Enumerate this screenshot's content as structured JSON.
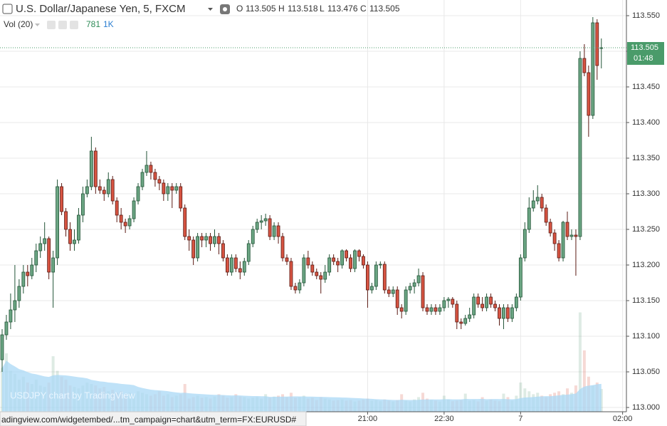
{
  "chart_data": {
    "type": "candlestick",
    "title": "U.S. Dollar/Japanese Yen, 5, FXCM",
    "ohlc_labels": [
      "O",
      "H",
      "L",
      "C"
    ],
    "volume_label": "Vol (20)",
    "volume_ma_period": 20,
    "volume_ma_label": "1K",
    "watermark": "USDJPY chart by TradingView",
    "countdown": "01:48",
    "open": [
      113.067,
      113.102,
      113.12,
      113.137,
      113.15,
      113.17,
      113.19,
      113.185,
      113.2,
      113.22,
      113.23,
      113.237,
      113.19,
      113.21,
      113.31,
      113.275,
      113.25,
      113.23,
      113.235,
      113.27,
      113.3,
      113.31,
      113.36,
      113.31,
      113.305,
      113.3,
      113.32,
      113.29,
      113.27,
      113.26,
      113.255,
      113.265,
      113.29,
      113.31,
      113.33,
      113.34,
      113.33,
      113.32,
      113.315,
      113.3,
      113.31,
      113.305,
      113.31,
      113.28,
      113.24,
      113.235,
      113.21,
      113.24,
      113.235,
      113.24,
      113.23,
      113.24,
      113.23,
      113.21,
      113.19,
      113.21,
      113.195,
      113.19,
      113.205,
      113.23,
      113.25,
      113.26,
      113.262,
      113.265,
      113.24,
      113.255,
      113.24,
      113.21,
      113.205,
      113.17,
      113.165,
      113.175,
      113.21,
      113.2,
      113.19,
      113.185,
      113.18,
      113.19,
      113.21,
      113.205,
      113.2,
      113.22,
      113.21,
      113.195,
      113.22,
      113.212,
      113.2,
      113.165,
      113.17,
      113.2,
      113.201,
      113.165,
      113.16,
      113.165,
      113.14,
      113.135,
      113.165,
      113.17,
      113.175,
      113.185,
      113.14,
      113.135,
      113.14,
      113.135,
      113.14,
      113.15,
      113.152,
      113.145,
      113.12,
      113.118,
      113.125,
      113.13,
      113.155,
      113.145,
      113.14,
      113.155,
      113.145,
      113.14,
      113.125,
      113.14,
      113.125,
      113.14,
      113.155,
      113.21,
      113.25,
      113.28,
      113.29,
      113.295,
      113.28,
      113.26,
      113.245,
      113.23,
      113.21,
      113.26,
      113.24,
      113.242,
      113.24,
      113.49,
      113.47,
      113.41,
      113.54,
      113.505
    ],
    "high": [
      113.11,
      113.13,
      113.16,
      113.2,
      113.18,
      113.2,
      113.2,
      113.21,
      113.23,
      113.24,
      113.26,
      113.24,
      113.22,
      113.32,
      113.315,
      113.28,
      113.26,
      113.25,
      113.28,
      113.31,
      113.32,
      113.38,
      113.365,
      113.32,
      113.31,
      113.33,
      113.325,
      113.295,
      113.28,
      113.265,
      113.27,
      113.295,
      113.315,
      113.335,
      113.36,
      113.345,
      113.335,
      113.325,
      113.32,
      113.315,
      113.315,
      113.315,
      113.315,
      113.285,
      113.25,
      113.24,
      113.245,
      113.245,
      113.245,
      113.245,
      113.25,
      113.245,
      113.235,
      113.215,
      113.215,
      113.215,
      113.205,
      113.21,
      113.235,
      113.255,
      113.265,
      113.27,
      113.272,
      113.27,
      113.26,
      113.26,
      113.245,
      113.215,
      113.21,
      113.175,
      113.18,
      113.215,
      113.22,
      113.205,
      113.195,
      113.19,
      113.2,
      113.215,
      113.215,
      113.21,
      113.222,
      113.222,
      113.215,
      113.222,
      113.222,
      113.215,
      113.205,
      113.175,
      113.205,
      113.205,
      113.205,
      113.17,
      113.17,
      113.17,
      113.145,
      113.17,
      113.175,
      113.18,
      113.195,
      113.19,
      113.145,
      113.145,
      113.145,
      113.145,
      113.155,
      113.155,
      113.155,
      113.15,
      113.125,
      113.13,
      113.14,
      113.16,
      113.16,
      113.155,
      113.16,
      113.16,
      113.15,
      113.145,
      113.145,
      113.145,
      113.145,
      113.16,
      113.215,
      113.26,
      113.295,
      113.305,
      113.312,
      113.3,
      113.285,
      113.265,
      113.25,
      113.235,
      113.262,
      113.275,
      113.25,
      113.25,
      113.5,
      113.51,
      113.48,
      113.548,
      113.545,
      113.518
    ],
    "low": [
      113.05,
      113.095,
      113.11,
      113.12,
      113.14,
      113.16,
      113.17,
      113.18,
      113.19,
      113.21,
      113.22,
      113.18,
      113.14,
      113.2,
      113.27,
      113.24,
      113.22,
      113.22,
      113.23,
      113.26,
      113.295,
      113.305,
      113.3,
      113.3,
      113.29,
      113.295,
      113.285,
      113.26,
      113.25,
      113.245,
      113.25,
      113.26,
      113.285,
      113.305,
      113.325,
      113.32,
      113.31,
      113.305,
      113.29,
      113.29,
      113.28,
      113.3,
      113.275,
      113.235,
      113.22,
      113.2,
      113.205,
      113.225,
      113.225,
      113.22,
      113.225,
      113.215,
      113.205,
      113.185,
      113.185,
      113.19,
      113.18,
      113.185,
      113.2,
      113.225,
      113.245,
      113.25,
      113.255,
      113.235,
      113.235,
      113.23,
      113.205,
      113.2,
      113.165,
      113.16,
      113.16,
      113.17,
      113.195,
      113.185,
      113.18,
      113.16,
      113.175,
      113.185,
      113.2,
      113.19,
      113.195,
      113.205,
      113.19,
      113.19,
      113.205,
      113.195,
      113.14,
      113.16,
      113.165,
      113.195,
      113.16,
      113.155,
      113.155,
      113.13,
      113.125,
      113.13,
      113.16,
      113.16,
      113.17,
      113.135,
      113.13,
      113.13,
      113.13,
      113.13,
      113.135,
      113.14,
      113.14,
      113.11,
      113.11,
      113.115,
      113.12,
      113.125,
      113.14,
      113.135,
      113.135,
      113.14,
      113.135,
      113.115,
      113.11,
      113.12,
      113.12,
      113.135,
      113.15,
      113.205,
      113.245,
      113.275,
      113.285,
      113.275,
      113.255,
      113.24,
      113.22,
      113.205,
      113.205,
      113.235,
      113.235,
      113.185,
      113.235,
      113.465,
      113.38,
      113.405,
      113.46,
      113.476
    ],
    "close": [
      113.102,
      113.12,
      113.137,
      113.15,
      113.17,
      113.19,
      113.185,
      113.2,
      113.22,
      113.23,
      113.237,
      113.19,
      113.21,
      113.31,
      113.275,
      113.25,
      113.23,
      113.235,
      113.27,
      113.3,
      113.31,
      113.36,
      113.31,
      113.305,
      113.3,
      113.32,
      113.29,
      113.27,
      113.26,
      113.255,
      113.265,
      113.29,
      113.31,
      113.33,
      113.34,
      113.33,
      113.32,
      113.315,
      113.3,
      113.31,
      113.305,
      113.31,
      113.28,
      113.24,
      113.235,
      113.21,
      113.24,
      113.235,
      113.24,
      113.23,
      113.24,
      113.23,
      113.21,
      113.19,
      113.21,
      113.195,
      113.19,
      113.205,
      113.23,
      113.25,
      113.26,
      113.262,
      113.265,
      113.24,
      113.255,
      113.24,
      113.21,
      113.205,
      113.17,
      113.165,
      113.175,
      113.21,
      113.2,
      113.19,
      113.185,
      113.18,
      113.19,
      113.21,
      113.205,
      113.2,
      113.22,
      113.21,
      113.195,
      113.22,
      113.212,
      113.2,
      113.165,
      113.17,
      113.2,
      113.201,
      113.165,
      113.16,
      113.165,
      113.14,
      113.135,
      113.165,
      113.17,
      113.175,
      113.185,
      113.14,
      113.135,
      113.14,
      113.135,
      113.14,
      113.15,
      113.152,
      113.145,
      113.12,
      113.118,
      113.125,
      113.13,
      113.155,
      113.145,
      113.14,
      113.155,
      113.145,
      113.14,
      113.125,
      113.14,
      113.125,
      113.14,
      113.155,
      113.21,
      113.25,
      113.28,
      113.29,
      113.295,
      113.28,
      113.26,
      113.245,
      113.23,
      113.21,
      113.26,
      113.24,
      113.242,
      113.24,
      113.49,
      113.47,
      113.41,
      113.54,
      113.48,
      113.505
    ],
    "volume": [
      1500,
      2000,
      1400,
      1300,
      1100,
      1200,
      1000,
      950,
      1100,
      900,
      850,
      1000,
      1900,
      1400,
      1200,
      1100,
      900,
      850,
      800,
      900,
      1000,
      950,
      900,
      800,
      850,
      700,
      750,
      650,
      700,
      600,
      650,
      600,
      700,
      650,
      600,
      550,
      600,
      700,
      550,
      600,
      500,
      550,
      600,
      950,
      450,
      500,
      550,
      480,
      500,
      450,
      520,
      600,
      550,
      480,
      500,
      600,
      520,
      500,
      450,
      480,
      500,
      450,
      600,
      480,
      520,
      550,
      600,
      500,
      650,
      480,
      500,
      550,
      450,
      480,
      400,
      500,
      450,
      420,
      380,
      400,
      420,
      380,
      400,
      350,
      380,
      420,
      450,
      380,
      400,
      360,
      420,
      380,
      350,
      400,
      600,
      380,
      350,
      420,
      500,
      650,
      450,
      400,
      380,
      350,
      550,
      420,
      360,
      380,
      400,
      620,
      380,
      400,
      350,
      500,
      380,
      420,
      380,
      360,
      620,
      500,
      380,
      550,
      1000,
      800,
      700,
      600,
      650,
      550,
      500,
      600,
      650,
      700,
      600,
      800,
      650,
      900,
      3400,
      2100,
      1200,
      900,
      1000,
      781
    ],
    "up_color": "#6ba583",
    "down_color": "#d75442",
    "volume_ma_color": "#a9d8f6",
    "ylim": [
      112.994,
      113.572
    ],
    "yticks": [
      {
        "value": 113,
        "label": "113.000"
      },
      {
        "value": 113.05,
        "label": "113.050"
      },
      {
        "value": 113.1,
        "label": "113.100"
      },
      {
        "value": 113.15,
        "label": "113.150"
      },
      {
        "value": 113.2,
        "label": "113.200"
      },
      {
        "value": 113.25,
        "label": "113.250"
      },
      {
        "value": 113.3,
        "label": "113.300"
      },
      {
        "value": 113.35,
        "label": "113.350"
      },
      {
        "value": 113.4,
        "label": "113.400"
      },
      {
        "value": 113.45,
        "label": "113.450"
      },
      {
        "value": 113.5,
        "label": "113.500"
      },
      {
        "value": 113.55,
        "label": "113.550"
      }
    ],
    "xlim": [
      -0.5,
      146.9
    ],
    "xticks": [
      {
        "value": 86,
        "label": "21:00"
      },
      {
        "value": 104,
        "label": "22:30"
      },
      {
        "value": 122,
        "label": "7"
      },
      {
        "value": 146,
        "label": "02:00"
      }
    ],
    "volume_ylim": [
      0,
      3900
    ],
    "grid": true
  },
  "status_bar": {
    "url": "adingview.com/widgetembed/...tm_campaign=chart&utm_term=FX:EURUSD#"
  }
}
